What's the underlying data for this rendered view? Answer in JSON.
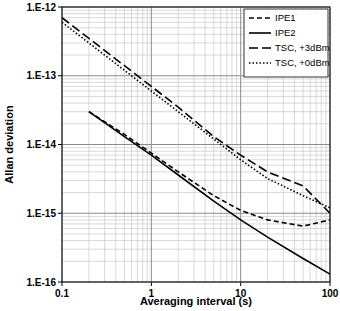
{
  "chart_data": {
    "type": "line",
    "x_label": "Averaging interval (s)",
    "y_label": "Allan deviation",
    "log": true,
    "grid": true,
    "legend": "top-right",
    "x": [
      0.1,
      0.2,
      0.5,
      1,
      2,
      5,
      10,
      20,
      50,
      100
    ],
    "xlim": [
      0.1,
      100
    ],
    "xticks": [
      0.1,
      1,
      10,
      100
    ],
    "ylim": [
      1e-16,
      1e-12
    ],
    "yticks": [
      {
        "value": 1e-16,
        "label": "1.E-16"
      },
      {
        "value": 1e-15,
        "label": "1.E-15"
      },
      {
        "value": 1e-14,
        "label": "1.E-14"
      },
      {
        "value": 1e-13,
        "label": "1.E-13"
      },
      {
        "value": 1e-12,
        "label": "1.E-12"
      }
    ],
    "series": [
      {
        "name": "IPE1",
        "color": "#000000",
        "line_style": "dashed",
        "values": [
          null,
          3e-14,
          1.4e-14,
          7.5e-15,
          4e-15,
          1.8e-15,
          1.1e-15,
          8e-16,
          6.5e-16,
          8e-16
        ]
      },
      {
        "name": "IPE2",
        "color": "#000000",
        "line_style": "solid",
        "values": [
          null,
          3e-14,
          1.3e-14,
          7e-15,
          3.6e-15,
          1.5e-15,
          8e-16,
          4.5e-16,
          2.2e-16,
          1.3e-16
        ]
      },
      {
        "name": "TSC, +3dBm",
        "color": "#000000",
        "line_style": "long-dashed",
        "values": [
          7e-13,
          3.5e-13,
          1.4e-13,
          7e-14,
          3.5e-14,
          1.3e-14,
          7e-15,
          4e-15,
          2.5e-15,
          1e-15
        ]
      },
      {
        "name": "TSC, +0dBm",
        "color": "#000000",
        "line_style": "dotted",
        "values": [
          6e-13,
          3e-13,
          1.2e-13,
          6e-14,
          3e-14,
          1.2e-14,
          6e-15,
          3.2e-15,
          1.8e-15,
          1.2e-15
        ]
      }
    ]
  }
}
